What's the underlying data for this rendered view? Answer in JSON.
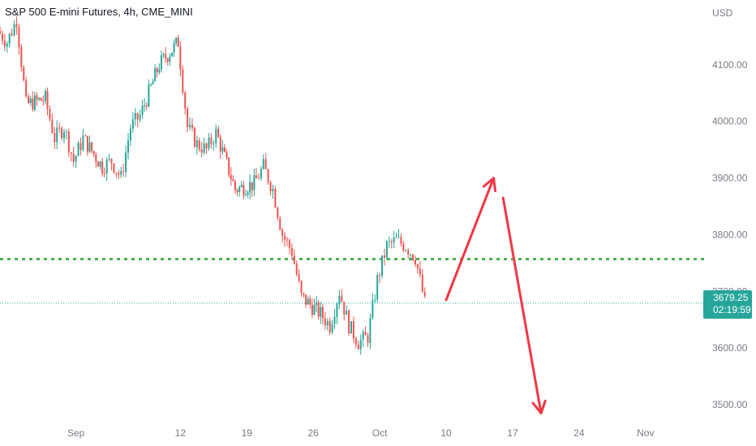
{
  "header": {
    "symbol_line": "S&P 500 E-mini Futures, 4h, CME_MINI"
  },
  "axis": {
    "currency": "USD"
  },
  "price_tag": {
    "price": "3679.25",
    "countdown": "02:19:59"
  },
  "colors": {
    "up": "#26a69a",
    "down": "#ef5350",
    "tag": "#26a69a",
    "support": "#4caf50",
    "arrow": "#f23645",
    "last_line": "#26a69a"
  },
  "chart_data": {
    "type": "candlestick",
    "timeframe": "4h",
    "title": "S&P 500 E-mini Futures, 4h, CME_MINI",
    "ylabel": "USD",
    "ylim": [
      3460,
      4190
    ],
    "y_ticks": [
      "4100.00",
      "4000.00",
      "3900.00",
      "3800.00",
      "3700.00",
      "3600.00",
      "3500.00"
    ],
    "x_range": [
      "2022-08-24",
      "2022-11-06"
    ],
    "x_ticks": [
      {
        "date": "2022-09-01",
        "label": "Sep"
      },
      {
        "date": "2022-09-12",
        "label": "12"
      },
      {
        "date": "2022-09-19",
        "label": "19"
      },
      {
        "date": "2022-09-26",
        "label": "26"
      },
      {
        "date": "2022-10-03",
        "label": "Oct"
      },
      {
        "date": "2022-10-10",
        "label": "10"
      },
      {
        "date": "2022-10-17",
        "label": "17"
      },
      {
        "date": "2022-10-24",
        "label": "24"
      },
      {
        "date": "2022-10-31",
        "label": "Nov"
      }
    ],
    "close_path": [
      [
        "2022-08-24",
        4160
      ],
      [
        "2022-08-25",
        4140
      ],
      [
        "2022-08-26",
        4180
      ],
      [
        "2022-08-27",
        4030
      ],
      [
        "2022-08-29",
        4040
      ],
      [
        "2022-08-30",
        3970
      ],
      [
        "2022-08-31",
        3990
      ],
      [
        "2022-09-01",
        3930
      ],
      [
        "2022-09-02",
        3970
      ],
      [
        "2022-09-04",
        3920
      ],
      [
        "2022-09-05",
        3930
      ],
      [
        "2022-09-06",
        3900
      ],
      [
        "2022-09-07",
        3990
      ],
      [
        "2022-09-08",
        4010
      ],
      [
        "2022-09-10",
        4100
      ],
      [
        "2022-09-12",
        4140
      ],
      [
        "2022-09-13",
        3990
      ],
      [
        "2022-09-14",
        3960
      ],
      [
        "2022-09-15",
        3950
      ],
      [
        "2022-09-16",
        3980
      ],
      [
        "2022-09-18",
        3880
      ],
      [
        "2022-09-20",
        3890
      ],
      [
        "2022-09-21",
        3920
      ],
      [
        "2022-09-22",
        3880
      ],
      [
        "2022-09-23",
        3800
      ],
      [
        "2022-09-24",
        3770
      ],
      [
        "2022-09-25",
        3690
      ],
      [
        "2022-09-27",
        3660
      ],
      [
        "2022-09-28",
        3640
      ],
      [
        "2022-09-29",
        3700
      ],
      [
        "2022-09-30",
        3640
      ],
      [
        "2022-10-01",
        3610
      ],
      [
        "2022-10-02",
        3620
      ],
      [
        "2022-10-03",
        3720
      ],
      [
        "2022-10-04",
        3780
      ],
      [
        "2022-10-05",
        3790
      ],
      [
        "2022-10-06",
        3780
      ],
      [
        "2022-10-07",
        3760
      ],
      [
        "2022-10-08",
        3679.25
      ]
    ],
    "last_price": 3679.25,
    "support_level": 3757,
    "projection": [
      {
        "from": [
          "2022-10-10",
          3685
        ],
        "to": [
          "2022-10-15",
          3900
        ]
      },
      {
        "from": [
          "2022-10-16",
          3865
        ],
        "to": [
          "2022-10-20",
          3485
        ]
      }
    ]
  }
}
